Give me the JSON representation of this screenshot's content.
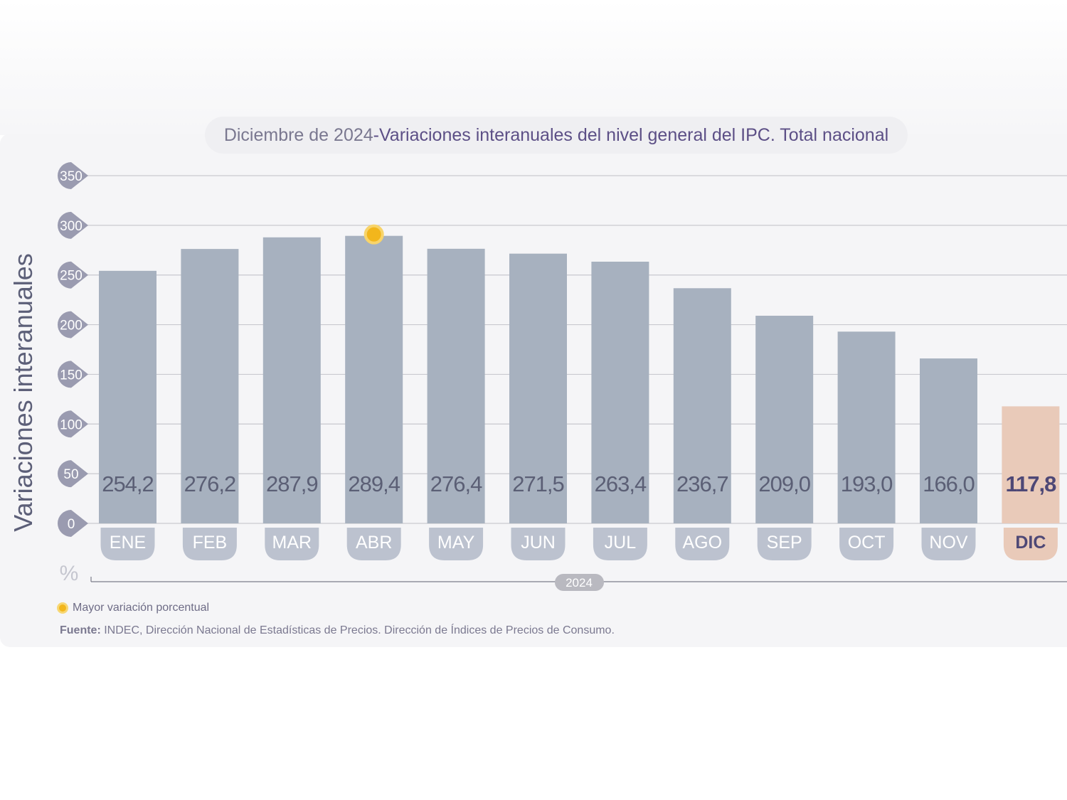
{
  "title": {
    "date": "Diciembre de 2024",
    "separator": " - ",
    "text": "Variaciones interanuales del nivel general del IPC. Total nacional"
  },
  "legend": {
    "label": "Mayor variación porcentual",
    "icon": "highlight-circle-icon"
  },
  "source": {
    "label": "Fuente:",
    "text": " INDEC, Dirección Nacional de Estadísticas de Precios. Dirección de Índices de Precios de Consumo."
  },
  "chart_data": {
    "type": "bar",
    "title": "Variaciones interanuales del nivel general del IPC. Total nacional",
    "ylabel": "Variaciones interanuales",
    "yunit": "%",
    "year_label": "2024",
    "ylim": [
      0,
      350
    ],
    "yticks": [
      0,
      50,
      100,
      150,
      200,
      250,
      300,
      350
    ],
    "categories": [
      "ENE",
      "FEB",
      "MAR",
      "ABR",
      "MAY",
      "JUN",
      "JUL",
      "AGO",
      "SEP",
      "OCT",
      "NOV",
      "DIC"
    ],
    "values": [
      254.2,
      276.2,
      287.9,
      289.4,
      276.4,
      271.5,
      263.4,
      236.7,
      209.0,
      193.0,
      166.0,
      117.8
    ],
    "value_labels": [
      "254,2",
      "276,2",
      "287,9",
      "289,4",
      "276,4",
      "271,5",
      "263,4",
      "236,7",
      "209,0",
      "193,0",
      "166,0",
      "117,8"
    ],
    "highlight_index": 3,
    "current_index": 11,
    "grid": true,
    "colors": {
      "bar": "#a7b1bf",
      "bar_current": "#e9cab9",
      "label_pill": "#bcc2cf",
      "label_pill_current": "#e9cab9",
      "value_text": "#5b5f75",
      "value_text_current": "#4e4876",
      "tick_circle": "#9a9bb0",
      "highlight": "#f2b61c",
      "grid": "#c9c9cf"
    }
  }
}
